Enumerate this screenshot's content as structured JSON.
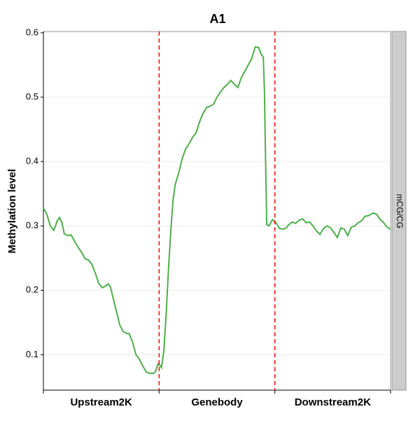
{
  "chart_data": {
    "type": "line",
    "title": "A1",
    "y_label": "Methylation level",
    "facet_label": "mCG/CG",
    "regions": [
      "Upstream2K",
      "Genebody",
      "Downstream2K"
    ],
    "vlines": [
      100,
      200
    ],
    "vline_color": "#ff0000",
    "x": [
      0,
      3,
      6,
      9,
      12,
      14,
      16,
      18,
      21,
      24,
      27,
      30,
      33,
      36,
      39,
      42,
      45,
      48,
      51,
      54,
      56,
      58,
      60,
      63,
      66,
      69,
      72,
      74,
      77,
      80,
      83,
      86,
      89,
      92,
      95,
      97,
      99,
      100,
      102,
      104,
      106,
      108,
      110,
      112,
      114,
      117,
      120,
      123,
      126,
      129,
      132,
      135,
      138,
      141,
      144,
      147,
      150,
      153,
      156,
      159,
      162,
      165,
      168,
      171,
      174,
      177,
      180,
      183,
      186,
      188,
      190,
      191,
      192,
      193,
      195,
      198,
      201,
      204,
      207,
      210,
      212,
      215,
      218,
      221,
      224,
      227,
      230,
      233,
      236,
      239,
      242,
      245,
      248,
      251,
      254,
      257,
      260,
      263,
      266,
      269,
      272,
      275,
      278,
      281,
      285,
      288,
      291,
      294,
      297,
      300
    ],
    "series": [
      {
        "name": "mCG/CG",
        "color": "#4daf4a",
        "values": [
          0.328,
          0.318,
          0.3,
          0.293,
          0.308,
          0.313,
          0.305,
          0.288,
          0.285,
          0.286,
          0.276,
          0.267,
          0.259,
          0.249,
          0.247,
          0.24,
          0.226,
          0.21,
          0.204,
          0.207,
          0.21,
          0.205,
          0.19,
          0.168,
          0.146,
          0.136,
          0.133,
          0.133,
          0.12,
          0.1,
          0.093,
          0.082,
          0.073,
          0.071,
          0.071,
          0.074,
          0.086,
          0.085,
          0.08,
          0.105,
          0.16,
          0.23,
          0.29,
          0.34,
          0.365,
          0.383,
          0.405,
          0.42,
          0.428,
          0.438,
          0.445,
          0.462,
          0.475,
          0.484,
          0.486,
          0.489,
          0.5,
          0.508,
          0.515,
          0.52,
          0.526,
          0.52,
          0.515,
          0.53,
          0.54,
          0.55,
          0.56,
          0.578,
          0.577,
          0.567,
          0.562,
          0.51,
          0.4,
          0.302,
          0.3,
          0.31,
          0.305,
          0.296,
          0.295,
          0.297,
          0.302,
          0.306,
          0.304,
          0.309,
          0.311,
          0.305,
          0.306,
          0.3,
          0.292,
          0.287,
          0.296,
          0.3,
          0.297,
          0.29,
          0.282,
          0.297,
          0.295,
          0.285,
          0.298,
          0.3,
          0.305,
          0.308,
          0.315,
          0.316,
          0.32,
          0.318,
          0.31,
          0.305,
          0.298,
          0.295
        ]
      }
    ],
    "xlim": [
      0,
      300
    ],
    "xticks": [
      0,
      100,
      200,
      300
    ],
    "ylim": [
      0.045,
      0.602
    ],
    "yticks": [
      0.1,
      0.2,
      0.3,
      0.4,
      0.5,
      0.6
    ],
    "grid": true
  }
}
